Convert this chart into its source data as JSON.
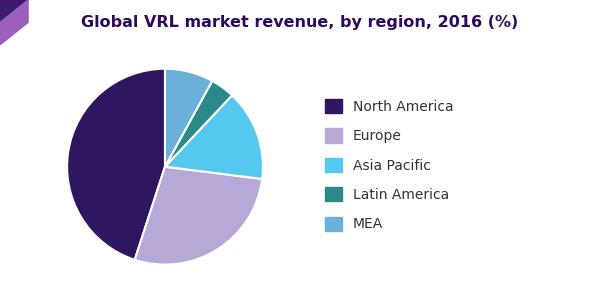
{
  "title": "Global VRL market revenue, by region, 2016 (%)",
  "title_fontsize": 11.5,
  "title_color": "#2d0a5e",
  "labels": [
    "North America",
    "Europe",
    "Asia Pacific",
    "Latin America",
    "MEA"
  ],
  "values": [
    45,
    28,
    15,
    4,
    8
  ],
  "colors": [
    "#2e1760",
    "#b8a8d8",
    "#55c8f0",
    "#2a8a8a",
    "#6ab0d8"
  ],
  "legend_fontsize": 10,
  "background_color": "#ffffff",
  "startangle": 90,
  "wedge_edge_color": "#ffffff",
  "wedge_linewidth": 1.5,
  "header_bg": "#f5f5f5",
  "header_line_color": "#6a3090",
  "corner_top_color": "#3d1a6e",
  "corner_bottom_color": "#9b5fbd"
}
